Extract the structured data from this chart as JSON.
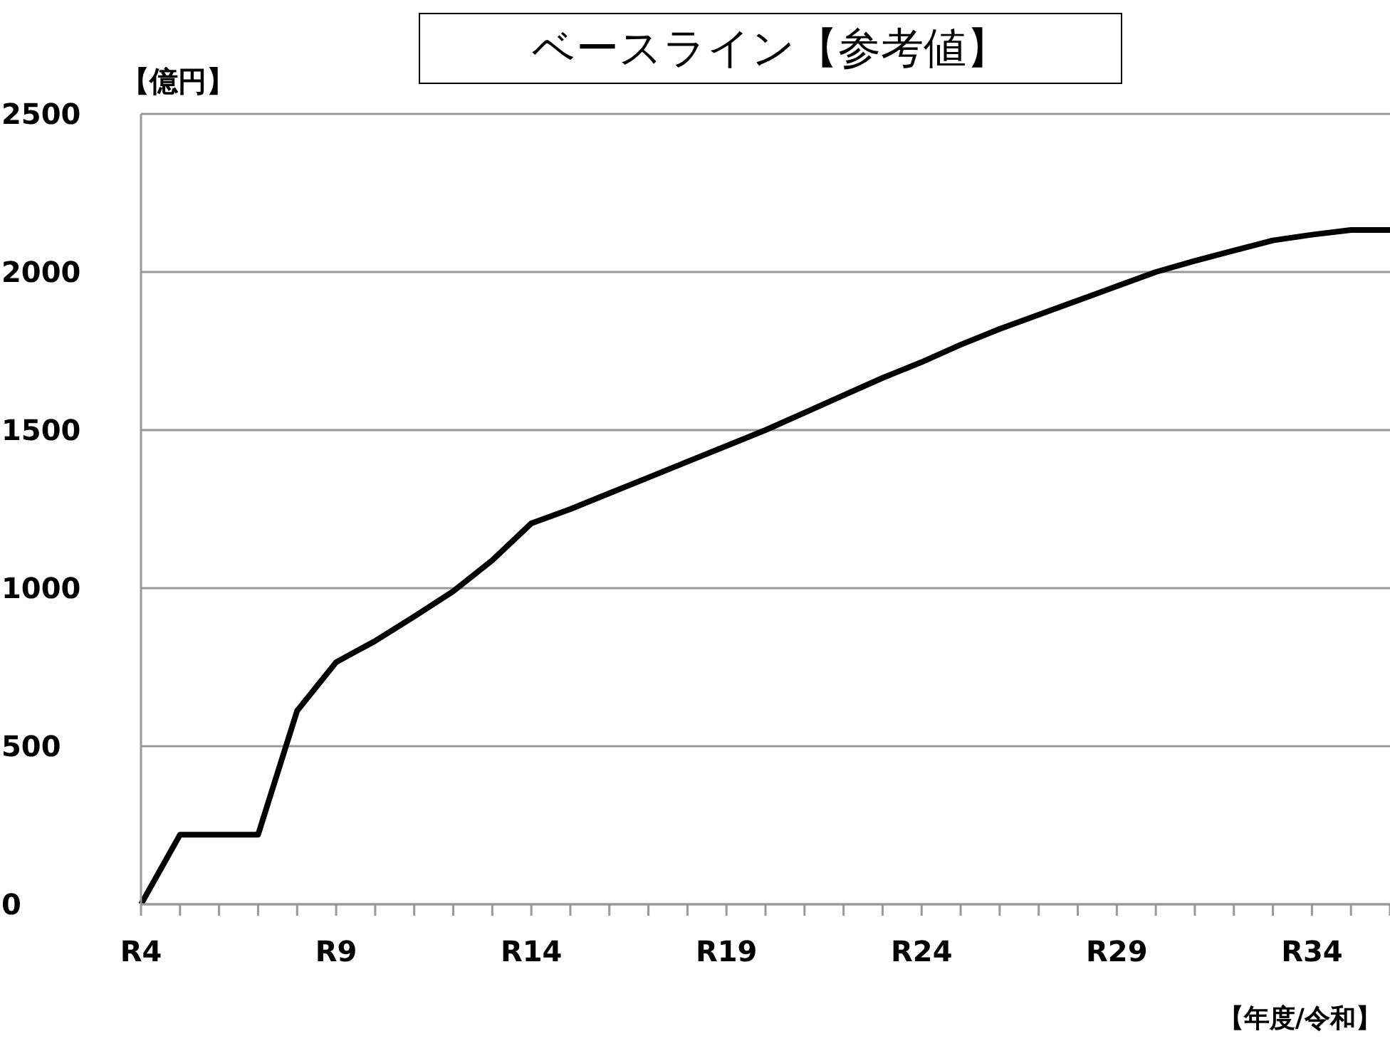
{
  "chart_data": {
    "type": "line",
    "title": "ベースライン【参考値】",
    "ylabel": "【億円】",
    "xlabel": "【年度/令和】",
    "categories": [
      "R4",
      null,
      null,
      null,
      null,
      "R9",
      null,
      null,
      null,
      null,
      "R14",
      null,
      null,
      null,
      null,
      "R19",
      null,
      null,
      null,
      null,
      "R24",
      null,
      null,
      null,
      null,
      "R29",
      null,
      null,
      null,
      null,
      "R34",
      null,
      null
    ],
    "values": [
      0,
      220,
      220,
      220,
      612,
      766,
      833,
      910,
      990,
      1088,
      1205,
      1250,
      1300,
      1350,
      1400,
      1450,
      1500,
      1555,
      1610,
      1665,
      1715,
      1770,
      1820,
      1865,
      1910,
      1955,
      2000,
      2035,
      2068,
      2100,
      2118,
      2133,
      2133
    ],
    "color": "#000000",
    "ylim": [
      0,
      2500
    ],
    "yticks": [
      0,
      500,
      1000,
      1500,
      2000,
      2500
    ],
    "grid": "y",
    "marker": "none",
    "line_style": "solid"
  }
}
